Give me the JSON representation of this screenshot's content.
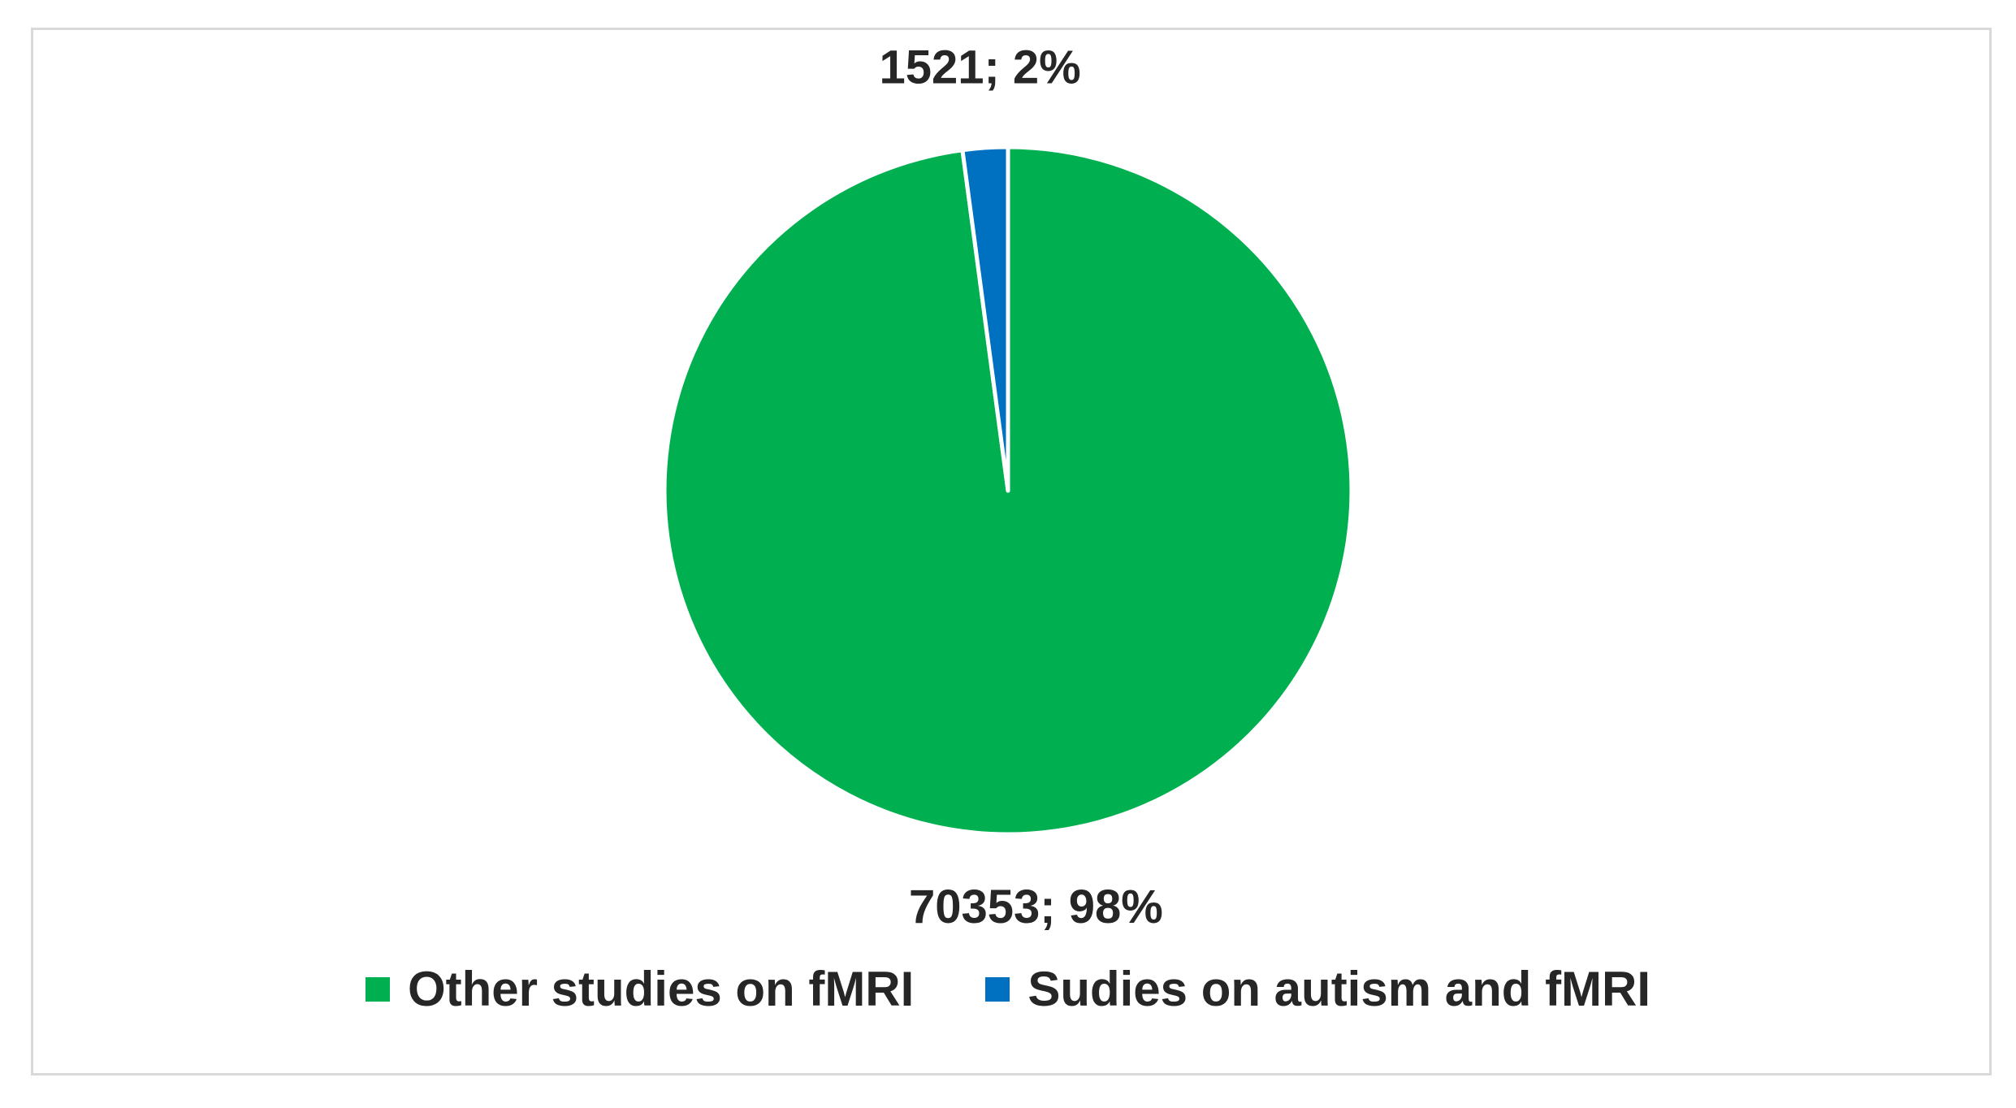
{
  "chart_data": {
    "type": "pie",
    "title": "",
    "start_angle_deg": 0,
    "direction": "clockwise",
    "legend_position": "bottom",
    "slices": [
      {
        "name": "Other studies on fMRI",
        "value": 70353,
        "percent": 98,
        "label": "70353; 98%",
        "color": "#00b050"
      },
      {
        "name": "Sudies on autism and fMRI",
        "value": 1521,
        "percent": 2,
        "label": "1521; 2%",
        "color": "#0070c0"
      }
    ]
  }
}
